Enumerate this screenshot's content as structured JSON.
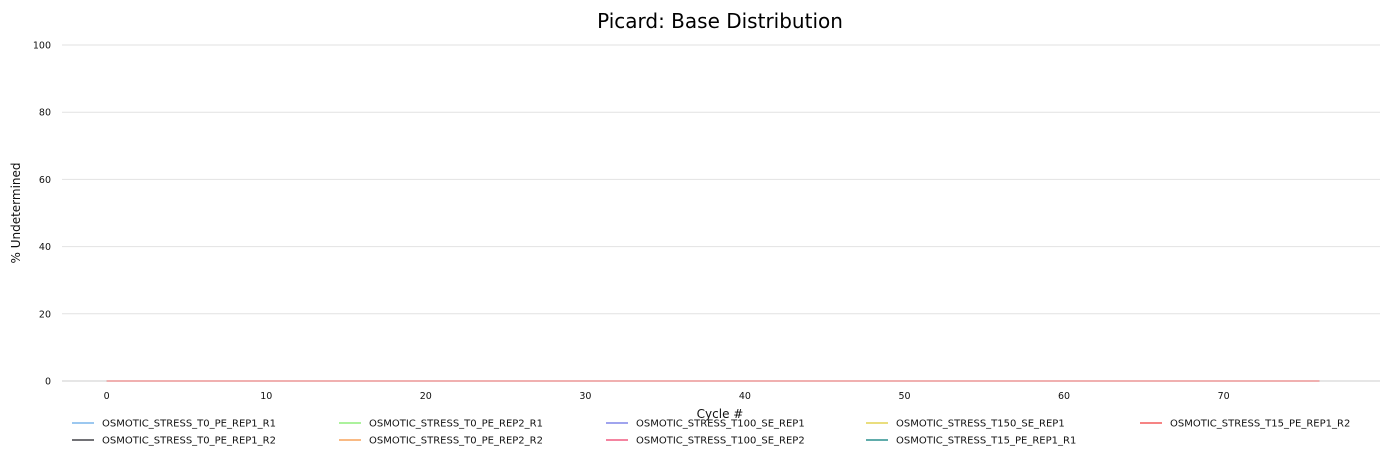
{
  "chart_data": {
    "type": "line",
    "title": "Picard: Base Distribution",
    "xlabel": "Cycle #",
    "ylabel": "% Undetermined",
    "xlim": [
      -2.8,
      79.8
    ],
    "ylim": [
      0,
      100
    ],
    "xticks": [
      0,
      10,
      20,
      30,
      40,
      50,
      60,
      70
    ],
    "yticks": [
      0,
      20,
      40,
      60,
      80,
      100
    ],
    "grid": "horizontal",
    "legend_position": "bottom",
    "x": [
      0,
      1,
      2,
      3,
      4,
      5,
      6,
      7,
      8,
      9,
      10,
      11,
      12,
      13,
      14,
      15,
      16,
      17,
      18,
      19,
      20,
      21,
      22,
      23,
      24,
      25,
      26,
      27,
      28,
      29,
      30,
      31,
      32,
      33,
      34,
      35,
      36,
      37,
      38,
      39,
      40,
      41,
      42,
      43,
      44,
      45,
      46,
      47,
      48,
      49,
      50,
      51,
      52,
      53,
      54,
      55,
      56,
      57,
      58,
      59,
      60,
      61,
      62,
      63,
      64,
      65,
      66,
      67,
      68,
      69,
      70,
      71,
      72,
      73,
      74,
      75,
      76
    ],
    "series": [
      {
        "name": "OSMOTIC_STRESS_T0_PE_REP1_R1",
        "color": "#7cb5ec",
        "constant": 0
      },
      {
        "name": "OSMOTIC_STRESS_T0_PE_REP1_R2",
        "color": "#434348",
        "constant": 0
      },
      {
        "name": "OSMOTIC_STRESS_T0_PE_REP2_R1",
        "color": "#90ed7d",
        "constant": 0
      },
      {
        "name": "OSMOTIC_STRESS_T0_PE_REP2_R2",
        "color": "#f7a35c",
        "constant": 0
      },
      {
        "name": "OSMOTIC_STRESS_T100_SE_REP1",
        "color": "#8085e9",
        "constant": 0
      },
      {
        "name": "OSMOTIC_STRESS_T100_SE_REP2",
        "color": "#f15c80",
        "constant": 0
      },
      {
        "name": "OSMOTIC_STRESS_T150_SE_REP1",
        "color": "#e4d354",
        "constant": 0
      },
      {
        "name": "OSMOTIC_STRESS_T15_PE_REP1_R1",
        "color": "#2b908f",
        "constant": 0
      },
      {
        "name": "OSMOTIC_STRESS_T15_PE_REP1_R2",
        "color": "#f45b5b",
        "constant": 0
      }
    ]
  }
}
